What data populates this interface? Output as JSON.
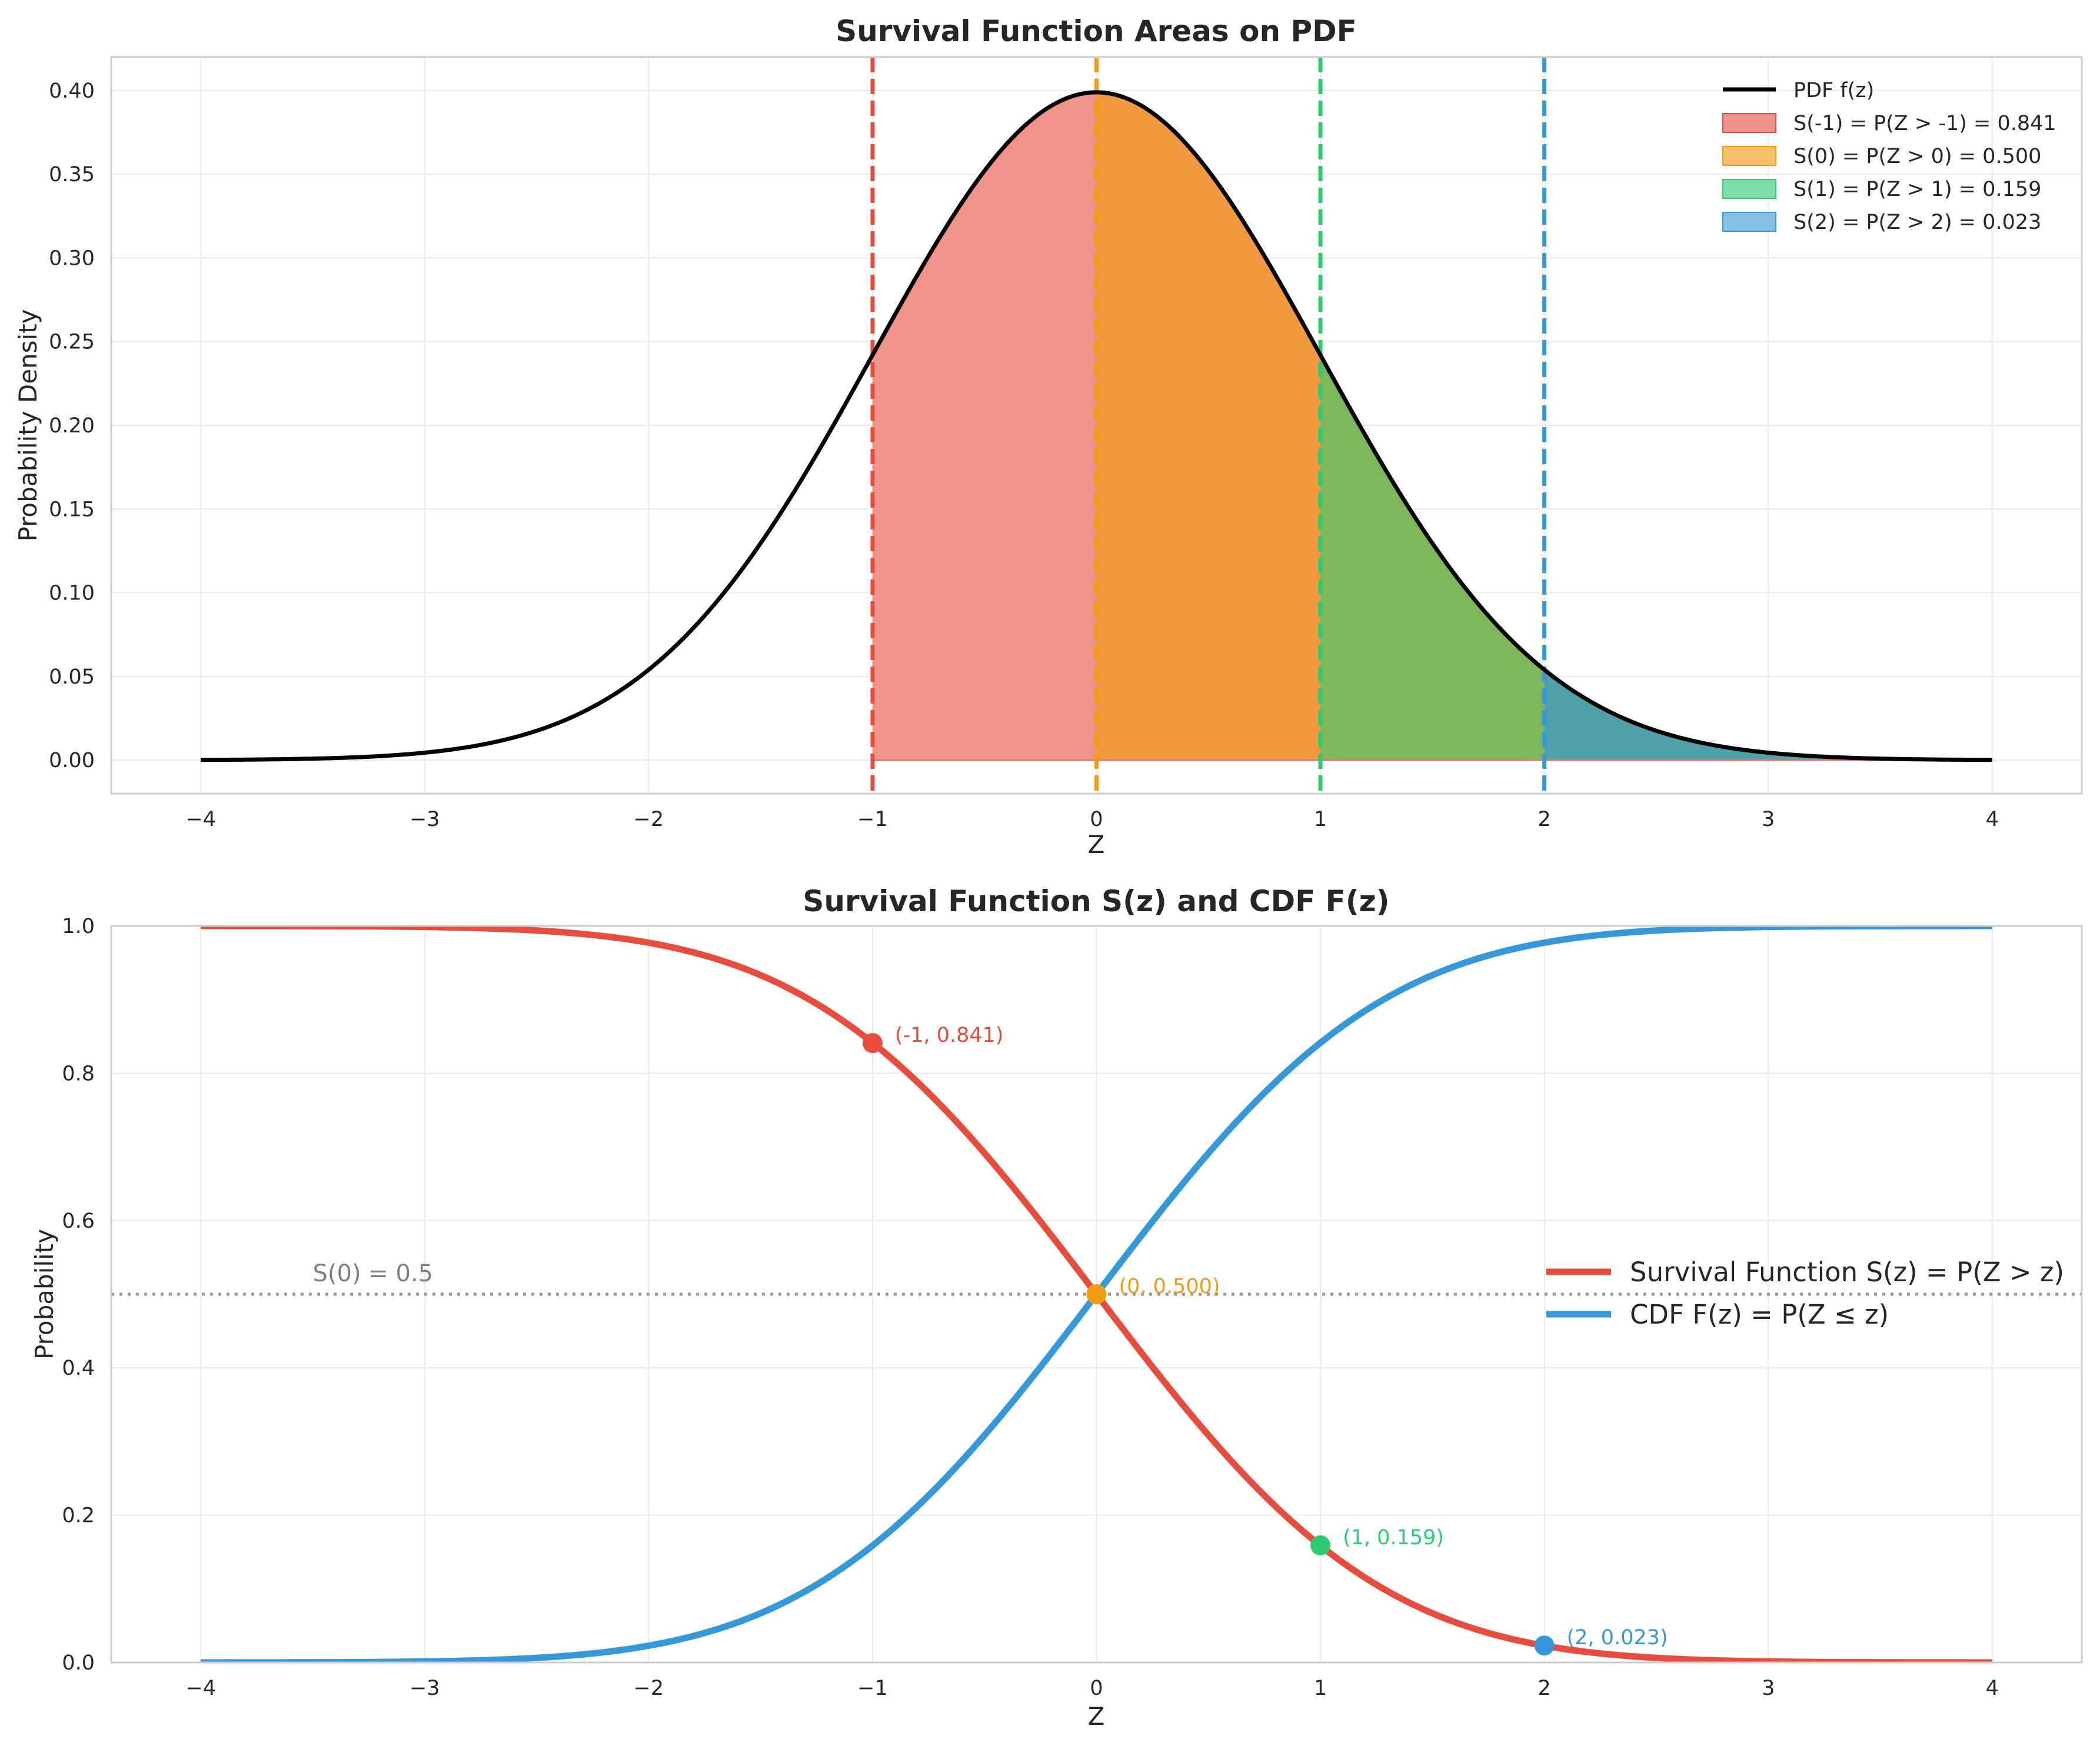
{
  "chart_data": [
    {
      "type": "area",
      "title": "Survival Function Areas on PDF",
      "xlabel": "Z",
      "ylabel": "Probability Density",
      "xlim": [
        -4.4,
        4.4
      ],
      "ylim": [
        -0.02,
        0.42
      ],
      "x_ticks": [
        "−4",
        "−3",
        "−2",
        "−1",
        "0",
        "1",
        "2",
        "3",
        "4"
      ],
      "y_ticks": [
        "0.00",
        "0.05",
        "0.10",
        "0.15",
        "0.20",
        "0.25",
        "0.30",
        "0.35",
        "0.40"
      ],
      "grid": true,
      "legend_position": "top-right",
      "curve": {
        "name": "PDF f(z)",
        "color": "#000000",
        "x": [
          -4,
          -3.5,
          -3,
          -2.5,
          -2,
          -1.5,
          -1,
          -0.5,
          0,
          0.5,
          1,
          1.5,
          2,
          2.5,
          3,
          3.5,
          4
        ],
        "y": [
          0.0001,
          0.0009,
          0.0044,
          0.0175,
          0.054,
          0.1295,
          0.242,
          0.3521,
          0.3989,
          0.3521,
          0.242,
          0.1295,
          0.054,
          0.0175,
          0.0044,
          0.0009,
          0.0001
        ]
      },
      "areas": [
        {
          "name": "S(-1) = P(Z > -1) = 0.841",
          "from": -1,
          "to": 4,
          "color": "#e74c3c",
          "legend_color": "#f0928a"
        },
        {
          "name": "S(0) = P(Z > 0) = 0.500",
          "from": 0,
          "to": 4,
          "color": "#f39c12",
          "legend_color": "#f6c06b"
        },
        {
          "name": "S(1) = P(Z > 1) = 0.159",
          "from": 1,
          "to": 4,
          "color": "#2ecc71",
          "legend_color": "#80dfa8"
        },
        {
          "name": "S(2) = P(Z > 2) = 0.023",
          "from": 2,
          "to": 4,
          "color": "#3498db",
          "legend_color": "#87c0e8"
        }
      ],
      "vlines": [
        {
          "x": -1,
          "color": "#e74c3c"
        },
        {
          "x": 0,
          "color": "#f39c12"
        },
        {
          "x": 1,
          "color": "#2ecc71"
        },
        {
          "x": 2,
          "color": "#3498db"
        }
      ],
      "region_fill_colors": [
        "#f09388",
        "#f0993f",
        "#7cb85a",
        "#4fa0a8"
      ]
    },
    {
      "type": "line",
      "title": "Survival Function S(z) and CDF F(z)",
      "xlabel": "Z",
      "ylabel": "Probability",
      "xlim": [
        -4.4,
        4.4
      ],
      "ylim": [
        0,
        1
      ],
      "x_ticks": [
        "−4",
        "−3",
        "−2",
        "−1",
        "0",
        "1",
        "2",
        "3",
        "4"
      ],
      "y_ticks": [
        "0.0",
        "0.2",
        "0.4",
        "0.6",
        "0.8",
        "1.0"
      ],
      "grid": true,
      "legend_position": "center-right",
      "series": [
        {
          "name": "Survival Function S(z) = P(Z > z)",
          "color": "#e74c3c",
          "x": [
            -4,
            -3.5,
            -3,
            -2.5,
            -2,
            -1.5,
            -1,
            -0.5,
            0,
            0.5,
            1,
            1.5,
            2,
            2.5,
            3,
            3.5,
            4
          ],
          "values": [
            1.0,
            0.9998,
            0.9987,
            0.9938,
            0.9772,
            0.9332,
            0.8413,
            0.6915,
            0.5,
            0.3085,
            0.1587,
            0.0668,
            0.0228,
            0.0062,
            0.0013,
            0.0002,
            0.0
          ]
        },
        {
          "name": "CDF F(z) = P(Z ≤ z)",
          "color": "#3498db",
          "x": [
            -4,
            -3.5,
            -3,
            -2.5,
            -2,
            -1.5,
            -1,
            -0.5,
            0,
            0.5,
            1,
            1.5,
            2,
            2.5,
            3,
            3.5,
            4
          ],
          "values": [
            0.0,
            0.0002,
            0.0013,
            0.0062,
            0.0228,
            0.0668,
            0.1587,
            0.3085,
            0.5,
            0.6915,
            0.8413,
            0.9332,
            0.9772,
            0.9938,
            0.9987,
            0.9998,
            1.0
          ]
        }
      ],
      "hline": {
        "y": 0.5,
        "color": "#999999",
        "label": "S(0) = 0.5",
        "label_x": -3.5
      },
      "points": [
        {
          "x": -1,
          "y": 0.841,
          "label": "(-1, 0.841)",
          "color": "#e74c3c"
        },
        {
          "x": 0,
          "y": 0.5,
          "label": "(0, 0.500)",
          "color": "#f39c12"
        },
        {
          "x": 1,
          "y": 0.159,
          "label": "(1, 0.159)",
          "color": "#2ecc71"
        },
        {
          "x": 2,
          "y": 0.023,
          "label": "(2, 0.023)",
          "color": "#3498db"
        }
      ]
    }
  ]
}
